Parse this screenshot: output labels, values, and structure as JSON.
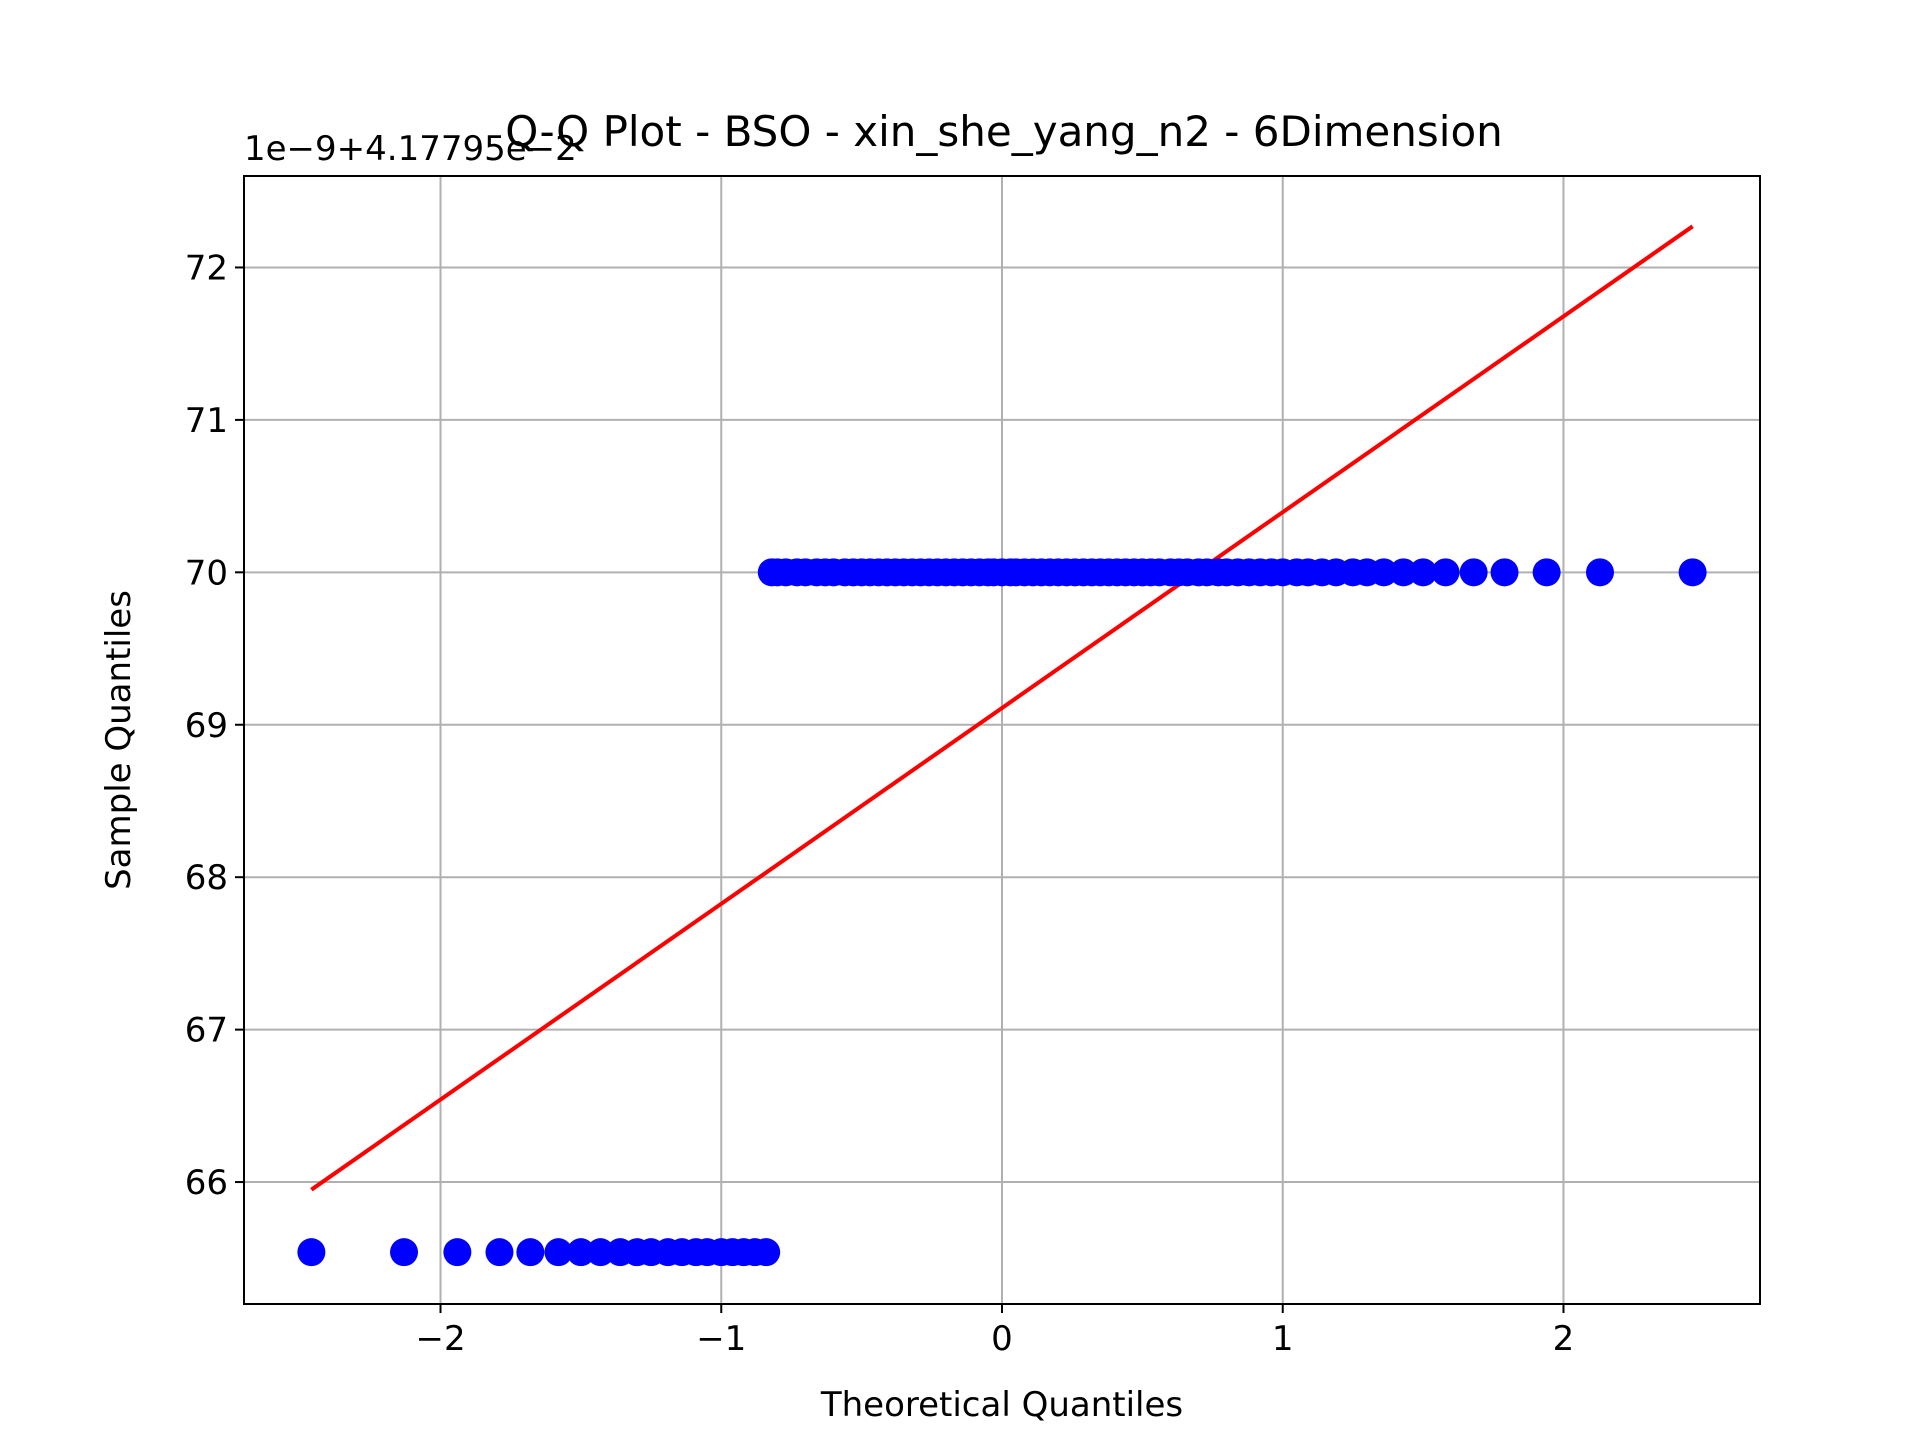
{
  "chart_data": {
    "type": "scatter",
    "title": "Q-Q Plot - BSO - xin_she_yang_n2 - 6Dimension",
    "xlabel": "Theoretical Quantiles",
    "ylabel": "Sample Quantiles",
    "offset_text": "1e−9+4.17795e−2",
    "xlim": [
      -2.7,
      2.7
    ],
    "ylim": [
      65.2,
      72.6
    ],
    "xticks": [
      -2,
      -1,
      0,
      1,
      2
    ],
    "xtick_labels": [
      "−2",
      "−1",
      "0",
      "1",
      "2"
    ],
    "yticks": [
      66,
      67,
      68,
      69,
      70,
      71,
      72
    ],
    "ytick_labels": [
      "66",
      "67",
      "68",
      "69",
      "70",
      "71",
      "72"
    ],
    "grid": true,
    "series": [
      {
        "values": [
          [
            -2.46,
            65.54
          ],
          [
            -2.13,
            65.54
          ],
          [
            -1.94,
            65.54
          ],
          [
            -1.79,
            65.54
          ],
          [
            -1.68,
            65.54
          ],
          [
            -1.58,
            65.54
          ],
          [
            -1.5,
            65.54
          ],
          [
            -1.43,
            65.54
          ],
          [
            -1.36,
            65.54
          ],
          [
            -1.3,
            65.54
          ],
          [
            -1.25,
            65.54
          ],
          [
            -1.19,
            65.54
          ],
          [
            -1.14,
            65.54
          ],
          [
            -1.09,
            65.54
          ],
          [
            -1.05,
            65.54
          ],
          [
            -1.0,
            65.54
          ],
          [
            -0.96,
            65.54
          ],
          [
            -0.92,
            65.54
          ],
          [
            -0.88,
            65.54
          ],
          [
            -0.84,
            65.54
          ],
          [
            -0.82,
            70.0
          ],
          [
            -0.8,
            70.0
          ],
          [
            -0.77,
            70.0
          ],
          [
            -0.73,
            70.0
          ],
          [
            -0.7,
            70.0
          ],
          [
            -0.66,
            70.0
          ],
          [
            -0.63,
            70.0
          ],
          [
            -0.6,
            70.0
          ],
          [
            -0.56,
            70.0
          ],
          [
            -0.53,
            70.0
          ],
          [
            -0.5,
            70.0
          ],
          [
            -0.47,
            70.0
          ],
          [
            -0.44,
            70.0
          ],
          [
            -0.41,
            70.0
          ],
          [
            -0.38,
            70.0
          ],
          [
            -0.35,
            70.0
          ],
          [
            -0.32,
            70.0
          ],
          [
            -0.29,
            70.0
          ],
          [
            -0.26,
            70.0
          ],
          [
            -0.23,
            70.0
          ],
          [
            -0.2,
            70.0
          ],
          [
            -0.17,
            70.0
          ],
          [
            -0.14,
            70.0
          ],
          [
            -0.11,
            70.0
          ],
          [
            -0.08,
            70.0
          ],
          [
            -0.05,
            70.0
          ],
          [
            -0.03,
            70.0
          ],
          [
            0.0,
            70.0
          ],
          [
            0.03,
            70.0
          ],
          [
            0.05,
            70.0
          ],
          [
            0.08,
            70.0
          ],
          [
            0.11,
            70.0
          ],
          [
            0.14,
            70.0
          ],
          [
            0.17,
            70.0
          ],
          [
            0.2,
            70.0
          ],
          [
            0.23,
            70.0
          ],
          [
            0.26,
            70.0
          ],
          [
            0.29,
            70.0
          ],
          [
            0.32,
            70.0
          ],
          [
            0.35,
            70.0
          ],
          [
            0.38,
            70.0
          ],
          [
            0.41,
            70.0
          ],
          [
            0.44,
            70.0
          ],
          [
            0.47,
            70.0
          ],
          [
            0.5,
            70.0
          ],
          [
            0.53,
            70.0
          ],
          [
            0.56,
            70.0
          ],
          [
            0.6,
            70.0
          ],
          [
            0.63,
            70.0
          ],
          [
            0.66,
            70.0
          ],
          [
            0.7,
            70.0
          ],
          [
            0.73,
            70.0
          ],
          [
            0.77,
            70.0
          ],
          [
            0.8,
            70.0
          ],
          [
            0.84,
            70.0
          ],
          [
            0.88,
            70.0
          ],
          [
            0.92,
            70.0
          ],
          [
            0.96,
            70.0
          ],
          [
            1.0,
            70.0
          ],
          [
            1.05,
            70.0
          ],
          [
            1.09,
            70.0
          ],
          [
            1.14,
            70.0
          ],
          [
            1.19,
            70.0
          ],
          [
            1.25,
            70.0
          ],
          [
            1.3,
            70.0
          ],
          [
            1.36,
            70.0
          ],
          [
            1.43,
            70.0
          ],
          [
            1.5,
            70.0
          ],
          [
            1.58,
            70.0
          ],
          [
            1.68,
            70.0
          ],
          [
            1.79,
            70.0
          ],
          [
            1.94,
            70.0
          ],
          [
            2.13,
            70.0
          ],
          [
            2.46,
            70.0
          ]
        ],
        "color": "#0000ff"
      },
      {
        "type": "line",
        "values": [
          [
            -2.46,
            65.95
          ],
          [
            2.46,
            72.27
          ]
        ],
        "color": "#ff0000"
      }
    ]
  }
}
